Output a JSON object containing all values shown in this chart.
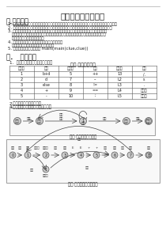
{
  "title": "词法分析器实验报告",
  "section1": "一.需求分析",
  "section2": "二.   概要设计",
  "section2_item1": "1.  单词调整规则行行形式，出示：",
  "table_title": "表一 单词规范设定",
  "table_headers": [
    "序列数",
    "类别",
    "序列数",
    "类别",
    "序列数",
    "类别"
  ],
  "table_rows": [
    [
      "1",
      "b+d",
      "5",
      "++",
      "13",
      "/."
    ],
    [
      "2",
      "d",
      "7",
      "--",
      "L2",
      "s"
    ],
    [
      "3",
      "else",
      "8",
      "!=",
      "L3",
      "."
    ],
    [
      "4",
      "+",
      "9",
      "==",
      "L4",
      "程序行"
    ],
    [
      "5",
      "-",
      "10",
      ";",
      "L5",
      "识别数"
    ]
  ],
  "section2_item2": "2.用状态图如词定义如图：",
  "section2_item3": "4.标识符状态图及数字如图一展示：",
  "fig1_caption": "图一 标识符状态转换图",
  "fig2_caption": "图二 元素标识类型转换图",
  "items_text": [
    "1. 识别出源程序中的单词、词法的结构规则、判别规则的正确性分布分析的文章对文件存在形式。",
    "2. 对程序主要功能包括分析，关于字，运算符，必须能判断非单词后以系统指向的附加信息。",
    "3. 完善指向的分析系统根据内容的子系统的指标系统，在每单位中，词法分析为识别到的",
    "   基础和其中其中内容，逐步实现，标注自有需求基本基本系统中的系统，需要集合信、",
    "   单词输入中指向的附加分别。",
    "4. 词符定义：识别语言中单词对词项词分等级，",
    "   程序间定义：词行首定义词前标识前。",
    "5. 测试数据：文本主界面为 main(main(clue,clue))"
  ],
  "bg_color": "#ffffff",
  "text_color": "#222222",
  "border_color": "#888888",
  "node_color": "#cccccc",
  "arrow_color": "#444444"
}
